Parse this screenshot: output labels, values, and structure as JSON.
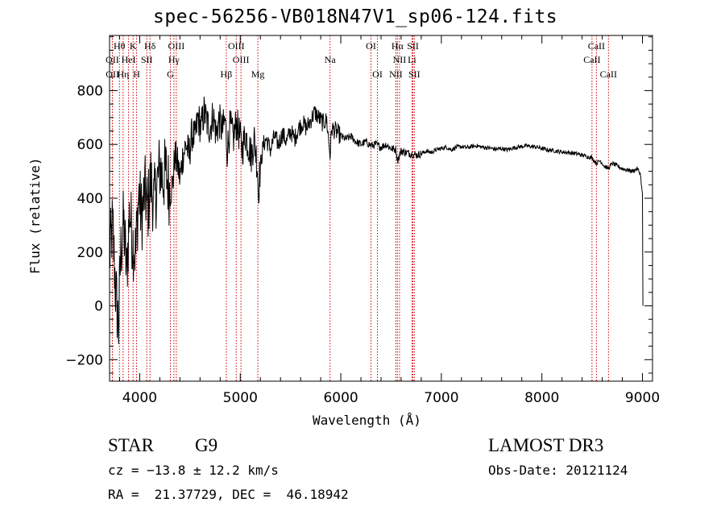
{
  "title": "spec-56256-VB018N47V1_sp06-124.fits",
  "footer": {
    "class_label": "STAR",
    "subclass_label": "G9",
    "survey": "LAMOST DR3",
    "cz_text": "cz = −13.8 ± 12.2 km/s",
    "obs_date": "Obs-Date: 20121124",
    "coords": "RA =  21.37729, DEC =  46.18942"
  },
  "chart_data": {
    "type": "line",
    "title": "spec-56256-VB018N47V1_sp06-124.fits",
    "xlabel": "Wavelength (Å)",
    "ylabel": "Flux (relative)",
    "xlim": [
      3700,
      9100
    ],
    "ylim": [
      -280,
      1005
    ],
    "x_ticks": [
      4000,
      5000,
      6000,
      7000,
      8000,
      9000
    ],
    "y_ticks": [
      -200,
      0,
      200,
      400,
      600,
      800
    ],
    "grid": false,
    "line_color": "#000000",
    "marker_color": "#cc0000",
    "series": [
      {
        "values": [
          [
            3700,
            180
          ],
          [
            3730,
            300
          ],
          [
            3760,
            60
          ],
          [
            3790,
            -80
          ],
          [
            3810,
            190
          ],
          [
            3840,
            310
          ],
          [
            3870,
            120
          ],
          [
            3900,
            360
          ],
          [
            3930,
            240
          ],
          [
            3960,
            200
          ],
          [
            3990,
            420
          ],
          [
            4020,
            330
          ],
          [
            4050,
            430
          ],
          [
            4080,
            360
          ],
          [
            4110,
            470
          ],
          [
            4140,
            380
          ],
          [
            4170,
            440
          ],
          [
            4200,
            520
          ],
          [
            4230,
            470
          ],
          [
            4260,
            500
          ],
          [
            4300,
            420
          ],
          [
            4330,
            460
          ],
          [
            4350,
            560
          ],
          [
            4380,
            520
          ],
          [
            4400,
            470
          ],
          [
            4430,
            560
          ],
          [
            4460,
            600
          ],
          [
            4490,
            560
          ],
          [
            4520,
            640
          ],
          [
            4550,
            620
          ],
          [
            4580,
            700
          ],
          [
            4610,
            660
          ],
          [
            4640,
            720
          ],
          [
            4670,
            680
          ],
          [
            4700,
            660
          ],
          [
            4730,
            710
          ],
          [
            4760,
            640
          ],
          [
            4790,
            690
          ],
          [
            4820,
            650
          ],
          [
            4850,
            690
          ],
          [
            4870,
            580
          ],
          [
            4900,
            670
          ],
          [
            4930,
            620
          ],
          [
            4960,
            680
          ],
          [
            4990,
            640
          ],
          [
            5020,
            580
          ],
          [
            5050,
            640
          ],
          [
            5080,
            600
          ],
          [
            5110,
            560
          ],
          [
            5140,
            620
          ],
          [
            5170,
            520
          ],
          [
            5180,
            420
          ],
          [
            5200,
            520
          ],
          [
            5230,
            600
          ],
          [
            5260,
            620
          ],
          [
            5300,
            580
          ],
          [
            5340,
            630
          ],
          [
            5380,
            600
          ],
          [
            5420,
            640
          ],
          [
            5460,
            610
          ],
          [
            5500,
            650
          ],
          [
            5540,
            620
          ],
          [
            5580,
            660
          ],
          [
            5620,
            680
          ],
          [
            5660,
            660
          ],
          [
            5700,
            690
          ],
          [
            5740,
            720
          ],
          [
            5780,
            700
          ],
          [
            5820,
            680
          ],
          [
            5860,
            690
          ],
          [
            5893,
            560
          ],
          [
            5910,
            660
          ],
          [
            5950,
            650
          ],
          [
            6000,
            630
          ],
          [
            6050,
            620
          ],
          [
            6100,
            630
          ],
          [
            6150,
            610
          ],
          [
            6200,
            600
          ],
          [
            6250,
            610
          ],
          [
            6300,
            595
          ],
          [
            6350,
            600
          ],
          [
            6400,
            590
          ],
          [
            6450,
            600
          ],
          [
            6500,
            585
          ],
          [
            6550,
            580
          ],
          [
            6563,
            540
          ],
          [
            6600,
            575
          ],
          [
            6650,
            570
          ],
          [
            6700,
            565
          ],
          [
            6750,
            560
          ],
          [
            6800,
            565
          ],
          [
            6850,
            575
          ],
          [
            6900,
            570
          ],
          [
            6950,
            580
          ],
          [
            7000,
            585
          ],
          [
            7050,
            590
          ],
          [
            7100,
            580
          ],
          [
            7150,
            590
          ],
          [
            7200,
            592
          ],
          [
            7250,
            588
          ],
          [
            7300,
            592
          ],
          [
            7350,
            595
          ],
          [
            7400,
            590
          ],
          [
            7450,
            588
          ],
          [
            7500,
            585
          ],
          [
            7550,
            582
          ],
          [
            7600,
            585
          ],
          [
            7650,
            580
          ],
          [
            7700,
            585
          ],
          [
            7750,
            590
          ],
          [
            7800,
            592
          ],
          [
            7850,
            595
          ],
          [
            7900,
            592
          ],
          [
            7950,
            590
          ],
          [
            8000,
            585
          ],
          [
            8050,
            580
          ],
          [
            8100,
            578
          ],
          [
            8150,
            575
          ],
          [
            8200,
            572
          ],
          [
            8250,
            570
          ],
          [
            8300,
            568
          ],
          [
            8350,
            565
          ],
          [
            8400,
            560
          ],
          [
            8450,
            555
          ],
          [
            8500,
            550
          ],
          [
            8540,
            530
          ],
          [
            8580,
            540
          ],
          [
            8620,
            520
          ],
          [
            8660,
            510
          ],
          [
            8700,
            530
          ],
          [
            8750,
            520
          ],
          [
            8800,
            510
          ],
          [
            8850,
            505
          ],
          [
            8900,
            500
          ],
          [
            8950,
            510
          ],
          [
            8980,
            490
          ],
          [
            9000,
            410
          ],
          [
            9005,
            0
          ]
        ]
      }
    ],
    "lines_top": [
      {
        "label": "Hθ",
        "x": 3798
      },
      {
        "label": "K",
        "x": 3934
      },
      {
        "label": "Hδ",
        "x": 4102
      },
      {
        "label": "OIII",
        "x": 4364
      },
      {
        "label": "OIII",
        "x": 4960
      },
      {
        "label": "OI",
        "x": 6300
      },
      {
        "label": "Hα",
        "x": 6563
      },
      {
        "label": "SII",
        "x": 6717
      },
      {
        "label": "CaII",
        "x": 8542
      }
    ],
    "lines_mid": [
      {
        "label": "OII",
        "x": 3727
      },
      {
        "label": "HeI",
        "x": 3889
      },
      {
        "label": "SII",
        "x": 4070
      },
      {
        "label": "Hγ",
        "x": 4340
      },
      {
        "label": "OIII",
        "x": 5007
      },
      {
        "label": "Na",
        "x": 5893
      },
      {
        "label": "NII",
        "x": 6584
      },
      {
        "label": "Li",
        "x": 6708
      },
      {
        "label": "CaII",
        "x": 8498
      }
    ],
    "lines_bot": [
      {
        "label": "OII",
        "x": 3729
      },
      {
        "label": "Hη",
        "x": 3835
      },
      {
        "label": "H",
        "x": 3969
      },
      {
        "label": "G",
        "x": 4305
      },
      {
        "label": "Hβ",
        "x": 4861
      },
      {
        "label": "Mg",
        "x": 5175
      },
      {
        "label": "OI",
        "x": 6364
      },
      {
        "label": "NII",
        "x": 6548
      },
      {
        "label": "SII",
        "x": 6731
      },
      {
        "label": "CaII",
        "x": 8662
      }
    ]
  }
}
